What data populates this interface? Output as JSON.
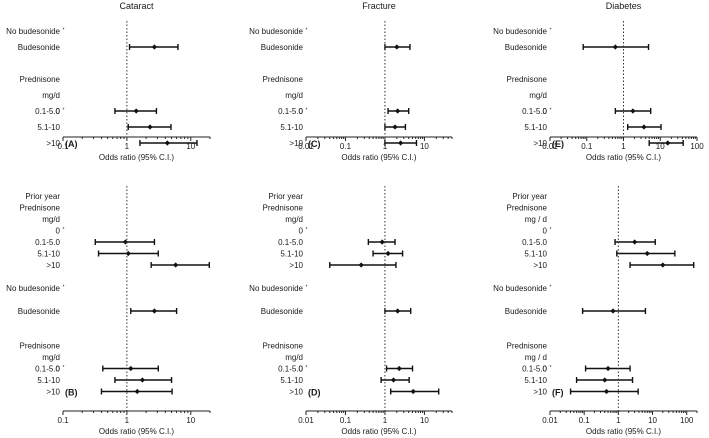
{
  "chart_data": [
    {
      "id": "A",
      "type": "forest",
      "title": "Cataract",
      "panel_label": "(A)",
      "xlabel": "Odds ratio (95% C.I.)",
      "xscale": "log",
      "xlim": [
        0.1,
        20
      ],
      "xticks": [
        {
          "value": 0.1,
          "label": "0.1"
        },
        {
          "value": 1,
          "label": "1"
        },
        {
          "value": 10,
          "label": "10"
        }
      ],
      "reference": 1,
      "rows": [
        {
          "label": "No budesonide",
          "ref": true
        },
        {
          "label": "Budesonide",
          "or": 2.7,
          "lo": 1.1,
          "hi": 6.3
        },
        {
          "spacer": true
        },
        {
          "label": "Prednisone",
          "header": true
        },
        {
          "label": "mg/d",
          "header": true,
          "inline_label": "0"
        },
        {
          "label": "0.1-5.0",
          "or": 1.4,
          "lo": 0.65,
          "hi": 2.9
        },
        {
          "label": "5.1-10",
          "or": 2.3,
          "lo": 1.05,
          "hi": 4.9
        },
        {
          "label": ">10",
          "or": 4.3,
          "lo": 1.6,
          "hi": 12.5
        }
      ]
    },
    {
      "id": "C",
      "type": "forest",
      "title": "Fracture",
      "panel_label": "(C)",
      "xlabel": "Odds ratio (95% C.I.)",
      "xscale": "log",
      "xlim": [
        0.01,
        50
      ],
      "xticks": [
        {
          "value": 0.01,
          "label": "0.01"
        },
        {
          "value": 0.1,
          "label": "0.1"
        },
        {
          "value": 1,
          "label": "1"
        },
        {
          "value": 10,
          "label": "10"
        }
      ],
      "reference": 1,
      "rows": [
        {
          "label": "No budesonide",
          "ref": true
        },
        {
          "label": "Budesonide",
          "or": 2.0,
          "lo": 1.0,
          "hi": 4.3
        },
        {
          "spacer": true
        },
        {
          "label": "Prednisone",
          "header": true
        },
        {
          "label": "mg/d",
          "header": true,
          "inline_label": "0"
        },
        {
          "label": "0.1-5.0",
          "or": 2.1,
          "lo": 1.2,
          "hi": 4.0
        },
        {
          "label": "5.1-10",
          "or": 1.8,
          "lo": 1.0,
          "hi": 3.3
        },
        {
          "label": ">10",
          "or": 2.5,
          "lo": 1.0,
          "hi": 6.3
        }
      ]
    },
    {
      "id": "E",
      "type": "forest",
      "title": "Diabetes",
      "panel_label": "(E)",
      "xlabel": "Odds ratio (95% C.I.)",
      "xscale": "log",
      "xlim": [
        0.01,
        100
      ],
      "xticks": [
        {
          "value": 0.01,
          "label": "0.01"
        },
        {
          "value": 0.1,
          "label": "0.1"
        },
        {
          "value": 1,
          "label": "1"
        },
        {
          "value": 10,
          "label": "10"
        },
        {
          "value": 100,
          "label": "100"
        }
      ],
      "reference": 1,
      "rows": [
        {
          "label": "No budesonide",
          "ref": true
        },
        {
          "label": "Budesonide",
          "or": 0.6,
          "lo": 0.08,
          "hi": 4.8
        },
        {
          "spacer": true
        },
        {
          "label": "Prednisone",
          "header": true
        },
        {
          "label": "mg/d",
          "header": true,
          "inline_label": "0"
        },
        {
          "label": "0.1-5.0",
          "or": 1.8,
          "lo": 0.6,
          "hi": 5.5
        },
        {
          "label": "5.1-10",
          "or": 3.6,
          "lo": 1.3,
          "hi": 10.5
        },
        {
          "label": ">10",
          "or": 16,
          "lo": 5.0,
          "hi": 42
        }
      ]
    },
    {
      "id": "B",
      "type": "forest",
      "title": "",
      "panel_label": "(B)",
      "xlabel": "Odds ratio (95% C.I.)",
      "xscale": "log",
      "xlim": [
        0.1,
        20
      ],
      "xticks": [
        {
          "value": 0.1,
          "label": "0.1"
        },
        {
          "value": 1,
          "label": "1"
        },
        {
          "value": 10,
          "label": "10"
        }
      ],
      "reference": 1,
      "rows": [
        {
          "label": "Prior year",
          "header": true
        },
        {
          "label": "Prednisone",
          "header": true
        },
        {
          "label": "mg/d",
          "header": true
        },
        {
          "label": "0",
          "ref": true
        },
        {
          "label": "0.1-5.0",
          "or": 0.95,
          "lo": 0.32,
          "hi": 2.7
        },
        {
          "label": "5.1-10",
          "or": 1.05,
          "lo": 0.36,
          "hi": 3.1
        },
        {
          "label": ">10",
          "or": 5.8,
          "lo": 2.4,
          "hi": 19.5
        },
        {
          "spacer": true
        },
        {
          "label": "No budesonide",
          "ref": true
        },
        {
          "spacer": true
        },
        {
          "label": "Budesonide",
          "or": 2.7,
          "lo": 1.15,
          "hi": 6.0
        },
        {
          "spacer": true
        },
        {
          "spacer": true
        },
        {
          "label": "Prednisone",
          "header": true
        },
        {
          "label": "mg/d",
          "header": true,
          "inline_label": "0"
        },
        {
          "label": "0.1-5.0",
          "or": 1.15,
          "lo": 0.42,
          "hi": 3.1
        },
        {
          "label": "5.1-10",
          "or": 1.75,
          "lo": 0.65,
          "hi": 5.0
        },
        {
          "label": ">10",
          "or": 1.45,
          "lo": 0.4,
          "hi": 5.1
        }
      ]
    },
    {
      "id": "D",
      "type": "forest",
      "title": "",
      "panel_label": "(D)",
      "xlabel": "Odds ratio (95% C.I.)",
      "xscale": "log",
      "xlim": [
        0.01,
        50
      ],
      "xticks": [
        {
          "value": 0.01,
          "label": "0.01"
        },
        {
          "value": 0.1,
          "label": "0.1"
        },
        {
          "value": 1,
          "label": "1"
        },
        {
          "value": 10,
          "label": "10"
        }
      ],
      "reference": 1,
      "rows": [
        {
          "label": "Prior year",
          "header": true
        },
        {
          "label": "Prednisone",
          "header": true
        },
        {
          "label": "mg/d",
          "header": true
        },
        {
          "label": "0",
          "ref": true
        },
        {
          "label": "0.1-5.0",
          "or": 0.85,
          "lo": 0.38,
          "hi": 1.8
        },
        {
          "label": "5.1-10",
          "or": 1.2,
          "lo": 0.5,
          "hi": 2.8
        },
        {
          "label": ">10",
          "or": 0.25,
          "lo": 0.04,
          "hi": 1.9
        },
        {
          "spacer": true
        },
        {
          "label": "No budesonide",
          "ref": true
        },
        {
          "spacer": true
        },
        {
          "label": "Budesonide",
          "or": 2.1,
          "lo": 1.0,
          "hi": 4.5
        },
        {
          "spacer": true
        },
        {
          "spacer": true
        },
        {
          "label": "Prednisone",
          "header": true
        },
        {
          "label": "mg/d",
          "header": true,
          "inline_label": "0"
        },
        {
          "label": "0.1-5.0",
          "or": 2.3,
          "lo": 1.1,
          "hi": 5.0
        },
        {
          "label": "5.1-10",
          "or": 1.65,
          "lo": 0.8,
          "hi": 4.1
        },
        {
          "label": ">10",
          "or": 5.2,
          "lo": 1.4,
          "hi": 23
        }
      ]
    },
    {
      "id": "F",
      "type": "forest",
      "title": "",
      "panel_label": "(F)",
      "xlabel": "Odds ratio (95% C.I.)",
      "xscale": "log",
      "xlim": [
        0.01,
        200
      ],
      "xticks": [
        {
          "value": 0.01,
          "label": "0.01"
        },
        {
          "value": 0.1,
          "label": "0.1"
        },
        {
          "value": 1,
          "label": "1"
        },
        {
          "value": 10,
          "label": "10"
        },
        {
          "value": 100,
          "label": "100"
        }
      ],
      "reference": 1,
      "rows": [
        {
          "label": "Prior year",
          "header": true
        },
        {
          "label": "Prednisone",
          "header": true
        },
        {
          "label": "mg / d",
          "header": true
        },
        {
          "label": "0",
          "ref": true
        },
        {
          "label": "0.1-5.0",
          "or": 3.0,
          "lo": 0.8,
          "hi": 12
        },
        {
          "label": "5.1-10",
          "or": 7.0,
          "lo": 0.9,
          "hi": 45
        },
        {
          "label": ">10",
          "or": 20,
          "lo": 2.2,
          "hi": 160
        },
        {
          "spacer": true
        },
        {
          "label": "No budesonide",
          "ref": true
        },
        {
          "spacer": true
        },
        {
          "label": "Budesonide",
          "or": 0.7,
          "lo": 0.09,
          "hi": 6.2
        },
        {
          "spacer": true
        },
        {
          "spacer": true
        },
        {
          "label": "Prednisone",
          "header": true
        },
        {
          "label": "mg / d",
          "header": true,
          "inline_label": "0"
        },
        {
          "label": "0.1-5.0",
          "or": 0.5,
          "lo": 0.11,
          "hi": 2.2
        },
        {
          "label": "5.1-10",
          "or": 0.4,
          "lo": 0.06,
          "hi": 2.6
        },
        {
          "label": ">10",
          "or": 0.45,
          "lo": 0.04,
          "hi": 3.8
        }
      ]
    }
  ]
}
